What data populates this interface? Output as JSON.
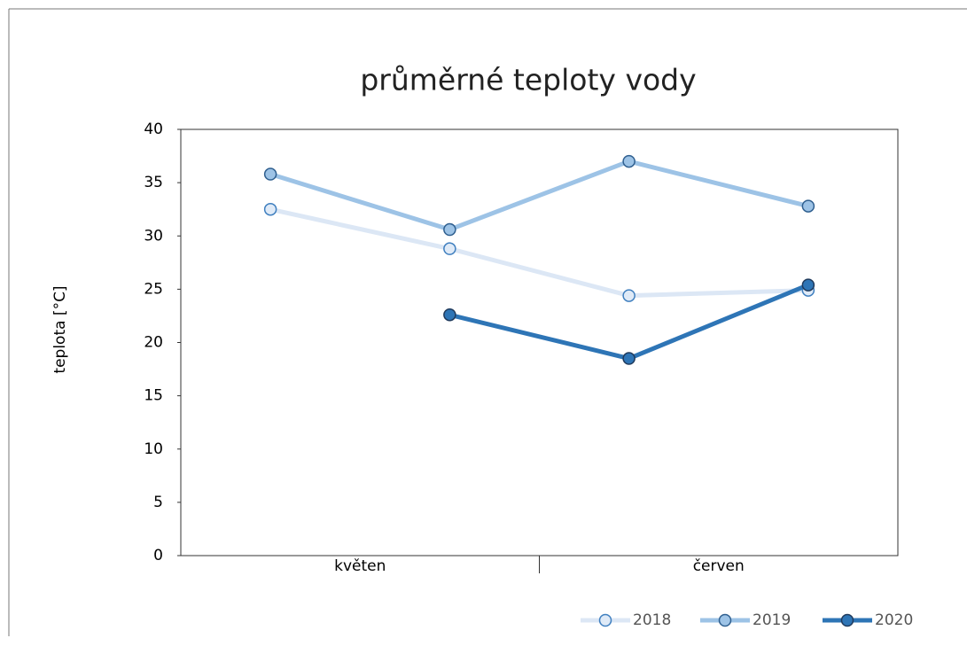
{
  "chart_data": {
    "type": "line",
    "title": "průměrné teploty vody",
    "y_label": "teplota [°C]",
    "categories": [
      null,
      null,
      null,
      null
    ],
    "category_groups": [
      "květen",
      "červen"
    ],
    "series": [
      {
        "name": "2018",
        "color": "#dce7f5",
        "marker_fill": "#dfeaf7",
        "marker_stroke": "#3f7fbf",
        "values": [
          32.5,
          28.8,
          24.4,
          24.9
        ]
      },
      {
        "name": "2019",
        "color": "#9dc3e6",
        "marker_fill": "#9dc3e6",
        "marker_stroke": "#2f5f8f",
        "values": [
          35.8,
          30.6,
          37.0,
          32.8
        ]
      },
      {
        "name": "2020",
        "color": "#2e75b6",
        "marker_fill": "#2e75b6",
        "marker_stroke": "#1f3a5c",
        "values": [
          null,
          22.6,
          18.5,
          25.4
        ]
      }
    ],
    "ylim": [
      0,
      40
    ],
    "yticks": [
      0,
      5,
      10,
      15,
      20,
      25,
      30,
      35,
      40
    ],
    "grid": false,
    "legend": "bottom-right"
  }
}
